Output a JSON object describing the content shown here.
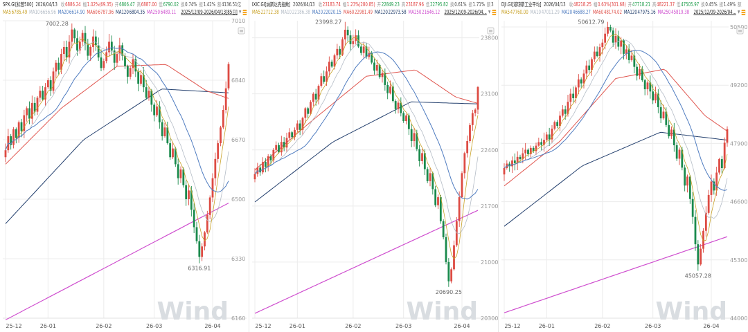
{
  "app": {
    "watermark": "Wind",
    "date_label": "2026/04/13"
  },
  "icons": {
    "dropdown": "▼"
  },
  "colors": {
    "up": "#dd4b43",
    "down": "#1a8a4c",
    "field_up": "#e03b3b",
    "field_down": "#189a46",
    "field_flat": "#444444",
    "ma5": "#c9a227",
    "ma10": "#b4bcc6",
    "ma20": "#4f7cc0",
    "ma60": "#e0564f",
    "ma120": "#24406e",
    "ma250": "#cf4fcf",
    "grid": "#ececec",
    "axis_text": "#9a9a9a",
    "x_text": "#555555",
    "annotation": "#666666",
    "watermark": "#d9dde1",
    "baseline": "#e0e0e0"
  },
  "panels": [
    {
      "symbol": "SPX.GI[标普500]",
      "date": "2026/04/13",
      "fields": [
        {
          "label": "收",
          "value": "6886.24",
          "color": "up"
        },
        {
          "label": "幅",
          "value": "1.02%(69.35)",
          "color": "up"
        },
        {
          "label": "开",
          "value": "6806.47",
          "color": "down"
        },
        {
          "label": "高",
          "value": "6887.00",
          "color": "up"
        },
        {
          "label": "低",
          "value": "6790.02",
          "color": "down"
        },
        {
          "label": "换",
          "value": "0.74%",
          "color": "flat"
        },
        {
          "label": "振",
          "value": "1.42%",
          "color": "flat"
        },
        {
          "label": "额",
          "value": "4136.51亿",
          "color": "flat"
        }
      ],
      "ma": [
        {
          "key": "ma5",
          "label": "MA5",
          "value": "6785.49"
        },
        {
          "key": "ma10",
          "label": "MA10",
          "value": "6656.96"
        },
        {
          "key": "ma20",
          "label": "MA20",
          "value": "6614.90"
        },
        {
          "key": "ma60",
          "label": "MA60",
          "value": "6787.96"
        },
        {
          "key": "ma120",
          "label": "MA120",
          "value": "6804.35"
        },
        {
          "key": "ma250",
          "label": "MA250",
          "value": "6489.11"
        }
      ],
      "range": "2025/12/09-2026/04/13[85日]"
    },
    {
      "symbol": "IXIC.GI[纳斯达克指数]",
      "date": "2026/04/13",
      "fields": [
        {
          "label": "收",
          "value": "23183.74",
          "color": "up"
        },
        {
          "label": "幅",
          "value": "1.23%(280.85)",
          "color": "up"
        },
        {
          "label": "开",
          "value": "22849.23",
          "color": "down"
        },
        {
          "label": "高",
          "value": "23187.96",
          "color": "up"
        },
        {
          "label": "低",
          "value": "22795.82",
          "color": "down"
        },
        {
          "label": "换",
          "value": "0.61%",
          "color": "flat"
        },
        {
          "label": "振",
          "value": "1.71%",
          "color": "flat"
        },
        {
          "label": "额",
          "value": "3",
          "color": "flat"
        }
      ],
      "ma": [
        {
          "key": "ma5",
          "label": "MA5",
          "value": "22712.38"
        },
        {
          "key": "ma10",
          "label": "MA10",
          "value": "22186.38"
        },
        {
          "key": "ma20",
          "label": "MA20",
          "value": "22020.15"
        },
        {
          "key": "ma60",
          "label": "MA60",
          "value": "22981.49"
        },
        {
          "key": "ma120",
          "label": "MA120",
          "value": "22973.58"
        },
        {
          "key": "ma250",
          "label": "MA250",
          "value": "21646.12"
        }
      ],
      "range": "2025/12/09-2026/04..."
    },
    {
      "symbol": "DJI.GI[道琼斯工业平均]",
      "date": "2026/04/13",
      "fields": [
        {
          "label": "收",
          "value": "48218.25",
          "color": "up"
        },
        {
          "label": "幅",
          "value": "0.63%(301.68)",
          "color": "up"
        },
        {
          "label": "开",
          "value": "47718.21",
          "color": "down"
        },
        {
          "label": "高",
          "value": "48221.37",
          "color": "up"
        },
        {
          "label": "低",
          "value": "47505.97",
          "color": "down"
        },
        {
          "label": "换",
          "value": "0.45%",
          "color": "flat"
        },
        {
          "label": "振",
          "value": "1.49%",
          "color": "flat"
        },
        {
          "label": "额",
          "value": "",
          "color": "flat"
        }
      ],
      "ma": [
        {
          "key": "ma5",
          "label": "MA5",
          "value": "47760.00"
        },
        {
          "key": "ma10",
          "label": "MA10",
          "value": "47011.29"
        },
        {
          "key": "ma20",
          "label": "MA20",
          "value": "46688.27"
        },
        {
          "key": "ma60",
          "label": "MA60",
          "value": "48174.02"
        },
        {
          "key": "ma120",
          "label": "MA120",
          "value": "47975.16"
        },
        {
          "key": "ma250",
          "label": "MA250",
          "value": "45819.38"
        }
      ],
      "range": "2025/12/09-2026/04..."
    }
  ],
  "chart_data": [
    {
      "type": "candlestick",
      "title": "SPX.GI 标普500 日K",
      "x_ticks": [
        "25-12",
        "26-01",
        "26-02",
        "26-03",
        "26-04"
      ],
      "x_tick_days": [
        0,
        16,
        37,
        56,
        78
      ],
      "y_ticks": [
        7010,
        6840,
        6670,
        6500,
        6330,
        6160
      ],
      "closes": [
        6640,
        6680,
        6655,
        6700,
        6675,
        6720,
        6695,
        6740,
        6760,
        6730,
        6775,
        6750,
        6790,
        6810,
        6785,
        6820,
        6840,
        6810,
        6865,
        6890,
        6870,
        6915,
        6935,
        6905,
        6950,
        6985,
        6960,
        6925,
        6950,
        6975,
        6945,
        6910,
        6935,
        6965,
        6940,
        6905,
        6875,
        6895,
        6920,
        6950,
        6925,
        6890,
        6915,
        6940,
        6910,
        6880,
        6850,
        6875,
        6900,
        6865,
        6830,
        6855,
        6820,
        6790,
        6810,
        6770,
        6740,
        6765,
        6720,
        6680,
        6705,
        6660,
        6620,
        6645,
        6600,
        6560,
        6585,
        6540,
        6500,
        6525,
        6470,
        6420,
        6380,
        6335,
        6365,
        6405,
        6455,
        6505,
        6560,
        6615,
        6660,
        6705,
        6755,
        6816.89,
        6886.24
      ],
      "extreme_high": {
        "day": 25,
        "value": 7002.28
      },
      "extreme_low": {
        "day": 73,
        "value": 6316.91
      },
      "ma_overlays": {
        "ma60": [
          [
            0,
            6600
          ],
          [
            0.25,
            6760
          ],
          [
            0.5,
            6880
          ],
          [
            0.72,
            6885
          ],
          [
            0.9,
            6810
          ],
          [
            1,
            6788
          ]
        ],
        "ma120": [
          [
            0,
            6430
          ],
          [
            0.35,
            6670
          ],
          [
            0.7,
            6815
          ],
          [
            1,
            6804
          ]
        ],
        "ma250": [
          [
            0,
            6155
          ],
          [
            1,
            6489
          ]
        ]
      }
    },
    {
      "type": "candlestick",
      "title": "IXIC.GI 纳斯达克指数 日K",
      "x_ticks": [
        "25-12",
        "26-01",
        "26-02",
        "26-03",
        "26-04"
      ],
      "x_tick_days": [
        0,
        16,
        37,
        56,
        78
      ],
      "y_ticks": [
        23800,
        23100,
        22400,
        21700,
        21000,
        20300
      ],
      "closes": [
        22100,
        22180,
        22120,
        22250,
        22190,
        22320,
        22270,
        22400,
        22460,
        22370,
        22500,
        22430,
        22550,
        22620,
        22560,
        22650,
        22730,
        22650,
        22800,
        22920,
        22850,
        23000,
        23100,
        23030,
        23200,
        23320,
        23250,
        23380,
        23500,
        23440,
        23580,
        23660,
        23590,
        23780,
        23900,
        23830,
        23720,
        23760,
        23830,
        23690,
        23610,
        23690,
        23560,
        23610,
        23490,
        23390,
        23460,
        23310,
        23360,
        23210,
        23110,
        23190,
        23010,
        22910,
        22990,
        22860,
        22760,
        22830,
        22660,
        22510,
        22610,
        22410,
        22260,
        22360,
        22160,
        22010,
        22110,
        21910,
        21710,
        21810,
        21510,
        21310,
        21000,
        20760,
        20910,
        21210,
        21510,
        21810,
        22110,
        22360,
        22510,
        22710,
        22860,
        22902.89,
        23183.74
      ],
      "extreme_high": {
        "day": 34,
        "value": 23998.27
      },
      "extreme_low": {
        "day": 73,
        "value": 20690.25
      },
      "ma_overlays": {
        "ma60": [
          [
            0,
            22150
          ],
          [
            0.25,
            22750
          ],
          [
            0.5,
            23320
          ],
          [
            0.72,
            23400
          ],
          [
            0.9,
            23060
          ],
          [
            1,
            22981
          ]
        ],
        "ma120": [
          [
            0,
            21750
          ],
          [
            0.35,
            22500
          ],
          [
            0.7,
            23000
          ],
          [
            1,
            22974
          ]
        ],
        "ma250": [
          [
            0,
            20360
          ],
          [
            1,
            21646
          ]
        ]
      }
    },
    {
      "type": "candlestick",
      "title": "DJI.GI 道琼斯工业平均 日K",
      "x_ticks": [
        "25-12",
        "26-01",
        "26-02",
        "26-03",
        "26-04"
      ],
      "x_tick_days": [
        0,
        16,
        37,
        56,
        78
      ],
      "y_ticks": [
        50500,
        49200,
        47900,
        46600,
        45300,
        44000
      ],
      "closes": [
        47350,
        47450,
        47390,
        47520,
        47460,
        47600,
        47550,
        47680,
        47760,
        47660,
        47800,
        47730,
        47850,
        47930,
        47870,
        47980,
        48100,
        47990,
        48230,
        48380,
        48290,
        48520,
        48660,
        48560,
        48830,
        49010,
        48910,
        49150,
        49330,
        49240,
        49460,
        49640,
        49540,
        49780,
        49950,
        49850,
        50050,
        50150,
        50350,
        50500,
        50420,
        50150,
        50300,
        50060,
        50200,
        49900,
        50000,
        49760,
        49860,
        49610,
        49410,
        49560,
        49310,
        49110,
        49260,
        49060,
        48860,
        49010,
        48710,
        48460,
        48610,
        48310,
        48060,
        48210,
        47860,
        47560,
        47760,
        47360,
        46960,
        47160,
        46660,
        46260,
        45650,
        45200,
        45550,
        45950,
        46350,
        46750,
        47050,
        46850,
        47250,
        47550,
        47350,
        47916.57,
        48218.25
      ],
      "extreme_high": {
        "day": 39,
        "value": 50612.79
      },
      "extreme_low": {
        "day": 73,
        "value": 45057.28
      },
      "ma_overlays": {
        "ma60": [
          [
            0,
            46950
          ],
          [
            0.25,
            47950
          ],
          [
            0.5,
            49350
          ],
          [
            0.72,
            49560
          ],
          [
            0.9,
            48520
          ],
          [
            1,
            48174
          ]
        ],
        "ma120": [
          [
            0,
            46050
          ],
          [
            0.35,
            47400
          ],
          [
            0.7,
            48150
          ],
          [
            1,
            47975
          ]
        ],
        "ma250": [
          [
            0,
            44120
          ],
          [
            1,
            45819
          ]
        ]
      }
    }
  ]
}
